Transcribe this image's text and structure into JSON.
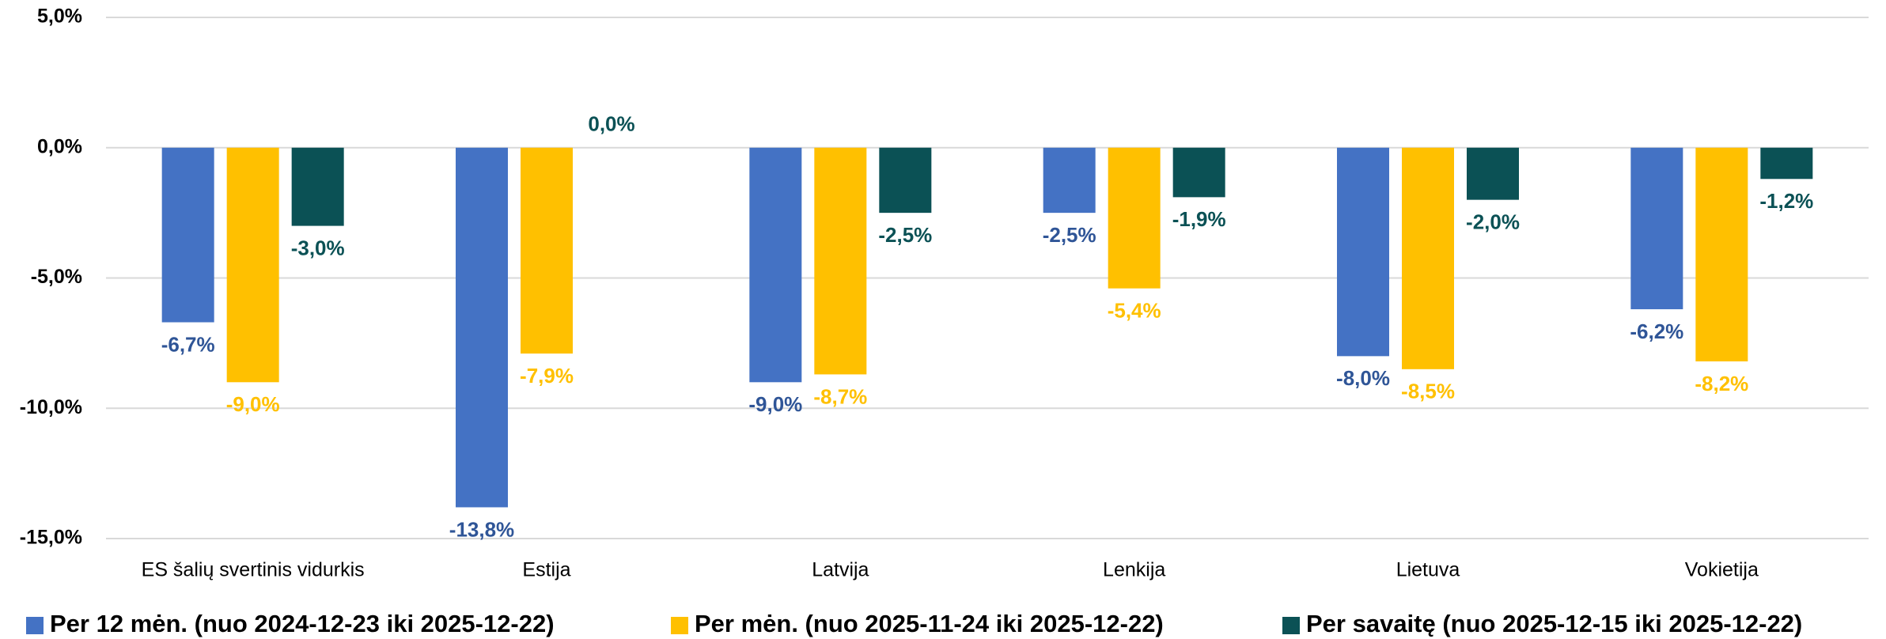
{
  "chart_data": {
    "type": "bar",
    "categories": [
      "ES šalių svertinis vidurkis",
      "Estija",
      "Latvija",
      "Lenkija",
      "Lietuva",
      "Vokietija"
    ],
    "series": [
      {
        "name": "Per 12 mėn. (nuo 2024-12-23 iki 2025-12-22)",
        "color": "#4472c4",
        "label_color": "#2f5597",
        "values": [
          -6.7,
          -13.8,
          -9.0,
          -2.5,
          -8.0,
          -6.2
        ],
        "value_labels": [
          "-6,7%",
          "-13,8%",
          "-9,0%",
          "-2,5%",
          "-8,0%",
          "-6,2%"
        ]
      },
      {
        "name": "Per mėn. (nuo 2025-11-24 iki 2025-12-22)",
        "color": "#ffc000",
        "label_color": "#ffc000",
        "values": [
          -9.0,
          -7.9,
          -8.7,
          -5.4,
          -8.5,
          -8.2
        ],
        "value_labels": [
          "-9,0%",
          "-7,9%",
          "-8,7%",
          "-5,4%",
          "-8,5%",
          "-8,2%"
        ]
      },
      {
        "name": "Per savaitę (nuo 2025-12-15 iki 2025-12-22)",
        "color": "#0b5155",
        "label_color": "#0b5155",
        "values": [
          -3.0,
          0.0,
          -2.5,
          -1.9,
          -2.0,
          -1.2
        ],
        "value_labels": [
          "-3,0%",
          "0,0%",
          "-2,5%",
          "-1,9%",
          "-2,0%",
          "-1,2%"
        ]
      }
    ],
    "ylim": [
      -15,
      5
    ],
    "yticks": [
      {
        "value": 5,
        "label": "5,0%"
      },
      {
        "value": 0,
        "label": "0,0%"
      },
      {
        "value": -5,
        "label": "-5,0%"
      },
      {
        "value": -10,
        "label": "-10,0%"
      },
      {
        "value": -15,
        "label": "-15,0%"
      }
    ],
    "grid": true,
    "legend": "bottom"
  }
}
